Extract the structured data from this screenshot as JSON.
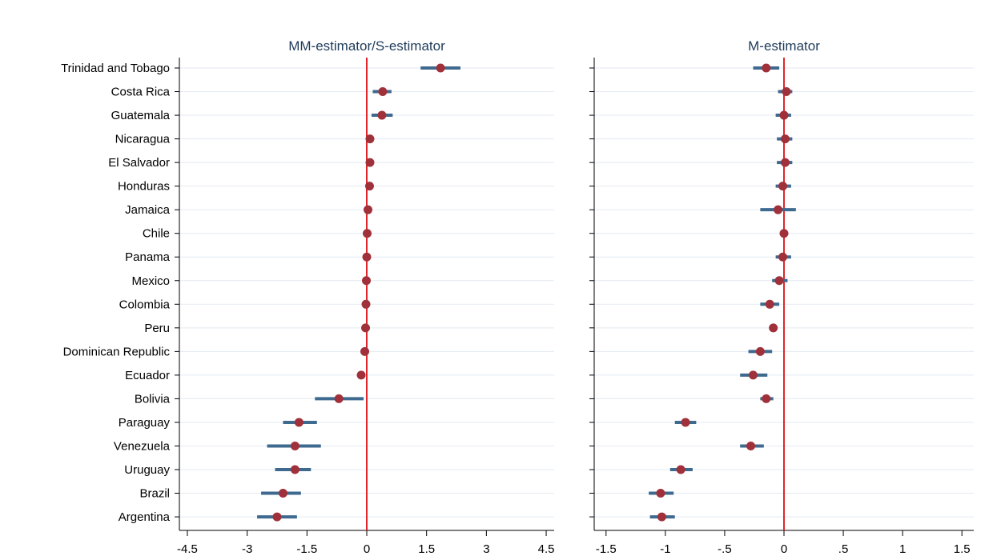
{
  "chart_data": [
    {
      "type": "scatter",
      "title": "MM-estimator/S-estimator",
      "categories": [
        "Trinidad and Tobago",
        "Costa Rica",
        "Guatemala",
        "Nicaragua",
        "El Salvador",
        "Honduras",
        "Jamaica",
        "Chile",
        "Panama",
        "Mexico",
        "Colombia",
        "Peru",
        "Dominican Republic",
        "Ecuador",
        "Bolivia",
        "Paraguay",
        "Venezuela",
        "Uruguay",
        "Brazil",
        "Argentina"
      ],
      "estimate": [
        1.85,
        0.4,
        0.38,
        0.08,
        0.08,
        0.07,
        0.03,
        0.01,
        0.0,
        -0.01,
        -0.02,
        -0.03,
        -0.05,
        -0.14,
        -0.7,
        -1.7,
        -1.8,
        -1.8,
        -2.1,
        -2.25
      ],
      "ci_low": [
        1.35,
        0.15,
        0.12,
        null,
        null,
        null,
        null,
        null,
        null,
        null,
        null,
        null,
        null,
        null,
        -1.3,
        -2.1,
        -2.5,
        -2.3,
        -2.65,
        -2.75
      ],
      "ci_high": [
        2.35,
        0.62,
        0.65,
        null,
        null,
        null,
        null,
        null,
        null,
        null,
        null,
        null,
        null,
        null,
        -0.08,
        -1.25,
        -1.15,
        -1.4,
        -1.65,
        -1.75
      ],
      "xlim": [
        -4.7,
        4.7
      ],
      "xticks": [
        -4.5,
        -3,
        -1.5,
        0,
        1.5,
        3,
        4.5
      ],
      "xtick_labels": [
        "-4.5",
        "-3",
        "-1.5",
        "0",
        "1.5",
        "3",
        "4.5"
      ],
      "reference_line": 0,
      "grid": true
    },
    {
      "type": "scatter",
      "title": "M-estimator",
      "categories": [
        "Trinidad and Tobago",
        "Costa Rica",
        "Guatemala",
        "Nicaragua",
        "El Salvador",
        "Honduras",
        "Jamaica",
        "Chile",
        "Panama",
        "Mexico",
        "Colombia",
        "Peru",
        "Dominican Republic",
        "Ecuador",
        "Bolivia",
        "Paraguay",
        "Venezuela",
        "Uruguay",
        "Brazil",
        "Argentina"
      ],
      "estimate": [
        -0.15,
        0.02,
        0.0,
        0.01,
        0.01,
        -0.01,
        -0.05,
        0.0,
        -0.01,
        -0.04,
        -0.12,
        -0.09,
        -0.2,
        -0.26,
        -0.15,
        -0.83,
        -0.28,
        -0.87,
        -1.04,
        -1.03
      ],
      "ci_low": [
        -0.26,
        -0.05,
        -0.07,
        -0.06,
        -0.06,
        -0.07,
        -0.2,
        null,
        -0.07,
        -0.1,
        -0.2,
        null,
        -0.3,
        -0.37,
        -0.2,
        -0.92,
        -0.37,
        -0.96,
        -1.14,
        -1.13
      ],
      "ci_high": [
        -0.04,
        0.07,
        0.06,
        0.07,
        0.07,
        0.06,
        0.1,
        null,
        0.06,
        0.03,
        -0.04,
        null,
        -0.1,
        -0.14,
        -0.09,
        -0.74,
        -0.17,
        -0.77,
        -0.93,
        -0.92
      ],
      "xlim": [
        -1.6,
        1.6
      ],
      "xticks": [
        -1.5,
        -1,
        -0.5,
        0,
        0.5,
        1,
        1.5
      ],
      "xtick_labels": [
        "-1.5",
        "-1",
        "-.5",
        "0",
        ".5",
        "1",
        "1.5"
      ],
      "reference_line": 0,
      "grid": true
    }
  ],
  "colors": {
    "point": "#a0303a",
    "ci_bar": "#3f6a8f",
    "reference_line": "#e0262b",
    "grid": "#e3eaf1",
    "title": "#1f3b5a"
  }
}
